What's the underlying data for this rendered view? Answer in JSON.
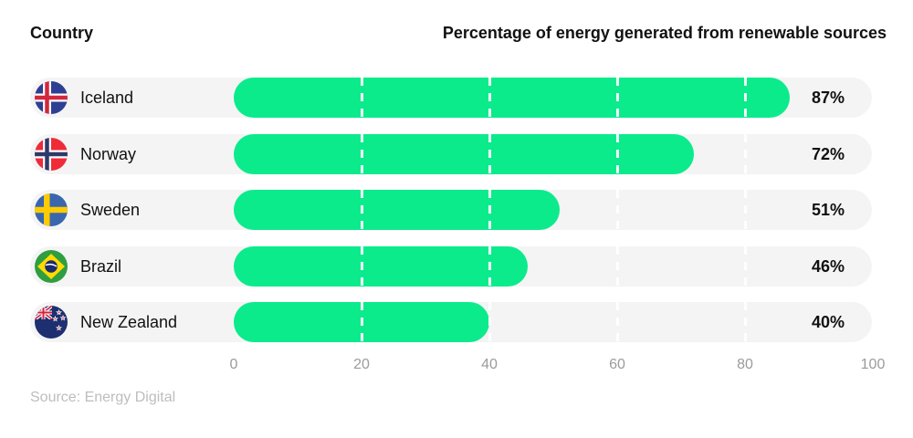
{
  "header": {
    "country_column_label": "Country",
    "chart_title": "Percentage of energy generated from renewable sources"
  },
  "chart_data": {
    "type": "bar",
    "orientation": "horizontal",
    "title": "Percentage of energy generated from renewable sources",
    "categories": [
      "Iceland",
      "Norway",
      "Sweden",
      "Brazil",
      "New Zealand"
    ],
    "values": [
      87,
      72,
      51,
      46,
      40
    ],
    "value_labels": [
      "87%",
      "72%",
      "51%",
      "46%",
      "40%"
    ],
    "xlim": [
      0,
      100
    ],
    "x_ticks": [
      0,
      20,
      40,
      60,
      80,
      100
    ],
    "grid": "vertical dashed white lines at 20, 40, 60 and 80 across each row",
    "legend": "none",
    "bar_color": "#0BEB8C",
    "track_color": "#F4F4F5",
    "source": "Source: Energy Digital"
  },
  "rows": [
    {
      "country": "Iceland",
      "flag_icon": "iceland-flag-icon",
      "value": 87,
      "value_label": "87%"
    },
    {
      "country": "Norway",
      "flag_icon": "norway-flag-icon",
      "value": 72,
      "value_label": "72%"
    },
    {
      "country": "Sweden",
      "flag_icon": "sweden-flag-icon",
      "value": 51,
      "value_label": "51%"
    },
    {
      "country": "Brazil",
      "flag_icon": "brazil-flag-icon",
      "value": 46,
      "value_label": "46%"
    },
    {
      "country": "New Zealand",
      "flag_icon": "new-zealand-flag-icon",
      "value": 40,
      "value_label": "40%"
    }
  ],
  "axis": {
    "tick_labels": [
      "0",
      "20",
      "40",
      "60",
      "80",
      "100"
    ]
  },
  "footer": {
    "source_label": "Source: Energy Digital"
  },
  "colors": {
    "bar": "#0BEB8C",
    "track": "#F4F4F5",
    "text": "#111111",
    "axis_text": "#9B9B9B",
    "source_text": "#BDBDBD"
  }
}
